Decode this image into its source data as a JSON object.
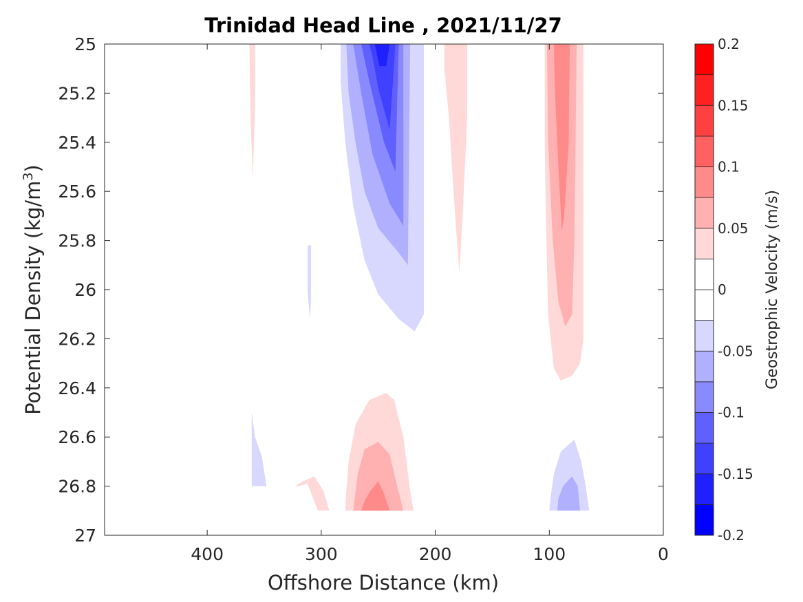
{
  "chart_data": {
    "type": "contour",
    "title": "Trinidad Head Line , 2021/11/27",
    "xlabel": "Offshore Distance (km)",
    "ylabel": "Potential Density (kg/m",
    "ylabel_superscript": "3",
    "ylabel_suffix": ")",
    "xlim": [
      490,
      0
    ],
    "ylim": [
      25,
      27
    ],
    "x_reversed": true,
    "y_reversed": true,
    "xticks": [
      400,
      300,
      200,
      100,
      0
    ],
    "xtick_labels": [
      "400",
      "300",
      "200",
      "100",
      "0"
    ],
    "yticks": [
      25,
      25.2,
      25.4,
      25.6,
      25.8,
      26,
      26.2,
      26.4,
      26.6,
      26.8,
      27
    ],
    "ytick_labels": [
      "25",
      "25.2",
      "25.4",
      "25.6",
      "25.8",
      "26",
      "26.2",
      "26.4",
      "26.6",
      "26.8",
      "27"
    ],
    "colorbar": {
      "label": "Geostrophic Velocity (m/s)",
      "range": [
        -0.2,
        0.2
      ],
      "ticks": [
        -0.2,
        -0.15,
        -0.1,
        -0.05,
        0,
        0.05,
        0.1,
        0.15,
        0.2
      ],
      "tick_labels": [
        "-0.2",
        "-0.15",
        "-0.1",
        "-0.05",
        "0",
        "0.05",
        "0.1",
        "0.15",
        "0.2"
      ],
      "levels": [
        {
          "min": -0.2,
          "max": -0.175,
          "color": "#0000ff"
        },
        {
          "min": -0.175,
          "max": -0.15,
          "color": "#2020ff"
        },
        {
          "min": -0.15,
          "max": -0.125,
          "color": "#4040ff"
        },
        {
          "min": -0.125,
          "max": -0.1,
          "color": "#6060ff"
        },
        {
          "min": -0.1,
          "max": -0.075,
          "color": "#8a8aff"
        },
        {
          "min": -0.075,
          "max": -0.05,
          "color": "#b0b0ff"
        },
        {
          "min": -0.05,
          "max": -0.025,
          "color": "#d8d8ff"
        },
        {
          "min": -0.025,
          "max": 0,
          "color": "#ffffff"
        },
        {
          "min": 0,
          "max": 0.025,
          "color": "#ffffff"
        },
        {
          "min": 0.025,
          "max": 0.05,
          "color": "#ffd8d8"
        },
        {
          "min": 0.05,
          "max": 0.075,
          "color": "#ffb0b0"
        },
        {
          "min": 0.075,
          "max": 0.1,
          "color": "#ff8a8a"
        },
        {
          "min": 0.1,
          "max": 0.125,
          "color": "#ff6060"
        },
        {
          "min": 0.125,
          "max": 0.15,
          "color": "#ff4040"
        },
        {
          "min": 0.15,
          "max": 0.175,
          "color": "#ff2020"
        },
        {
          "min": 0.175,
          "max": 0.2,
          "color": "#ff0000"
        }
      ]
    },
    "regions": [
      {
        "name": "red-sliver-360km",
        "value": 0.04,
        "color": "#ffd8d8",
        "points": [
          [
            363,
            25
          ],
          [
            358,
            25
          ],
          [
            358,
            25.25
          ],
          [
            360,
            25.55
          ],
          [
            362,
            25.3
          ]
        ]
      },
      {
        "name": "blue-core-250km-l1",
        "value": -0.04,
        "color": "#d8d8ff",
        "points": [
          [
            283,
            25
          ],
          [
            210,
            25
          ],
          [
            210,
            26.1
          ],
          [
            218,
            26.17
          ],
          [
            232,
            26.12
          ],
          [
            250,
            26.02
          ],
          [
            262,
            25.88
          ],
          [
            272,
            25.66
          ],
          [
            279,
            25.4
          ],
          [
            283,
            25.15
          ]
        ]
      },
      {
        "name": "blue-core-250km-l2",
        "value": -0.06,
        "color": "#b0b0ff",
        "points": [
          [
            278,
            25
          ],
          [
            222,
            25
          ],
          [
            224,
            25.9
          ],
          [
            232,
            25.85
          ],
          [
            250,
            25.75
          ],
          [
            262,
            25.6
          ],
          [
            270,
            25.4
          ],
          [
            276,
            25.2
          ]
        ]
      },
      {
        "name": "blue-core-250km-l3",
        "value": -0.09,
        "color": "#8a8aff",
        "points": [
          [
            272,
            25
          ],
          [
            228,
            25
          ],
          [
            228,
            25.74
          ],
          [
            240,
            25.65
          ],
          [
            255,
            25.45
          ],
          [
            265,
            25.2
          ]
        ]
      },
      {
        "name": "blue-core-250km-l4",
        "value": -0.11,
        "color": "#6060ff",
        "points": [
          [
            265,
            25
          ],
          [
            232,
            25
          ],
          [
            235,
            25.52
          ],
          [
            245,
            25.4
          ],
          [
            258,
            25.15
          ]
        ]
      },
      {
        "name": "blue-core-250km-l5",
        "value": -0.14,
        "color": "#4040ff",
        "points": [
          [
            258,
            25
          ],
          [
            235,
            25
          ],
          [
            240,
            25.35
          ],
          [
            250,
            25.18
          ],
          [
            255,
            25.05
          ]
        ]
      },
      {
        "name": "blue-core-250km-l6",
        "value": -0.16,
        "color": "#2020ff",
        "points": [
          [
            253,
            25
          ],
          [
            240,
            25
          ],
          [
            243,
            25.09
          ],
          [
            249,
            25.09
          ]
        ]
      },
      {
        "name": "red-streak-180km",
        "value": 0.04,
        "color": "#ffd8d8",
        "points": [
          [
            192,
            25
          ],
          [
            172,
            25
          ],
          [
            172,
            25.3
          ],
          [
            176,
            25.7
          ],
          [
            179,
            25.93
          ],
          [
            184,
            25.6
          ],
          [
            188,
            25.3
          ],
          [
            192,
            25.1
          ]
        ]
      },
      {
        "name": "red-core-90km-l1",
        "value": 0.04,
        "color": "#ffd8d8",
        "points": [
          [
            104,
            25
          ],
          [
            70,
            25
          ],
          [
            70,
            26.2
          ],
          [
            73,
            26.3
          ],
          [
            80,
            26.35
          ],
          [
            90,
            26.37
          ],
          [
            96,
            26.32
          ],
          [
            101,
            26.1
          ],
          [
            103,
            25.7
          ],
          [
            104,
            25.4
          ]
        ]
      },
      {
        "name": "red-core-90km-l2",
        "value": 0.06,
        "color": "#ffb0b0",
        "points": [
          [
            102,
            25
          ],
          [
            76,
            25
          ],
          [
            78,
            25.8
          ],
          [
            80,
            26.1
          ],
          [
            86,
            26.15
          ],
          [
            92,
            26.05
          ],
          [
            97,
            25.8
          ],
          [
            101,
            25.4
          ]
        ]
      },
      {
        "name": "red-core-90km-l3",
        "value": 0.09,
        "color": "#ff8a8a",
        "points": [
          [
            96,
            25
          ],
          [
            82,
            25
          ],
          [
            83,
            25.4
          ],
          [
            87,
            25.7
          ],
          [
            89,
            25.76
          ],
          [
            92,
            25.5
          ],
          [
            95,
            25.2
          ]
        ]
      },
      {
        "name": "blue-sliver-310km",
        "value": -0.04,
        "color": "#d8d8ff",
        "points": [
          [
            312,
            25.82
          ],
          [
            309,
            25.82
          ],
          [
            309,
            26.05
          ],
          [
            310,
            26.12
          ],
          [
            312,
            26.0
          ]
        ]
      },
      {
        "name": "red-bulge-250km-l1",
        "value": 0.04,
        "color": "#ffd8d8",
        "points": [
          [
            279,
            26.9
          ],
          [
            219,
            26.9
          ],
          [
            222,
            26.82
          ],
          [
            228,
            26.6
          ],
          [
            236,
            26.45
          ],
          [
            243,
            26.42
          ],
          [
            258,
            26.45
          ],
          [
            270,
            26.55
          ],
          [
            276,
            26.7
          ],
          [
            278,
            26.82
          ]
        ]
      },
      {
        "name": "red-bulge-250km-l2",
        "value": 0.06,
        "color": "#ffb0b0",
        "points": [
          [
            272,
            26.9
          ],
          [
            228,
            26.9
          ],
          [
            236,
            26.75
          ],
          [
            240,
            26.67
          ],
          [
            250,
            26.62
          ],
          [
            262,
            26.65
          ],
          [
            268,
            26.75
          ]
        ]
      },
      {
        "name": "red-bulge-250km-l3",
        "value": 0.09,
        "color": "#ff8a8a",
        "points": [
          [
            265,
            26.9
          ],
          [
            240,
            26.9
          ],
          [
            245,
            26.83
          ],
          [
            250,
            26.78
          ],
          [
            257,
            26.82
          ],
          [
            262,
            26.86
          ]
        ]
      },
      {
        "name": "red-small-310km",
        "value": 0.04,
        "color": "#ffd8d8",
        "points": [
          [
            323,
            26.8
          ],
          [
            320,
            26.8
          ],
          [
            312,
            26.79
          ],
          [
            303,
            26.9
          ],
          [
            293,
            26.9
          ],
          [
            298,
            26.82
          ],
          [
            306,
            26.76
          ],
          [
            316,
            26.78
          ]
        ]
      },
      {
        "name": "blue-patch-355km",
        "value": -0.04,
        "color": "#d8d8ff",
        "points": [
          [
            361,
            26.8
          ],
          [
            361,
            26.5
          ],
          [
            358,
            26.6
          ],
          [
            352,
            26.68
          ],
          [
            348,
            26.8
          ]
        ]
      },
      {
        "name": "blue-patch-85km-l1",
        "value": -0.04,
        "color": "#d8d8ff",
        "points": [
          [
            100,
            26.9
          ],
          [
            65,
            26.9
          ],
          [
            68,
            26.8
          ],
          [
            72,
            26.7
          ],
          [
            78,
            26.61
          ],
          [
            90,
            26.66
          ],
          [
            96,
            26.75
          ],
          [
            99,
            26.85
          ]
        ]
      },
      {
        "name": "blue-patch-85km-l2",
        "value": -0.06,
        "color": "#b0b0ff",
        "points": [
          [
            93,
            26.9
          ],
          [
            73,
            26.9
          ],
          [
            75,
            26.8
          ],
          [
            80,
            26.76
          ],
          [
            88,
            26.8
          ],
          [
            92,
            26.85
          ]
        ]
      }
    ]
  }
}
